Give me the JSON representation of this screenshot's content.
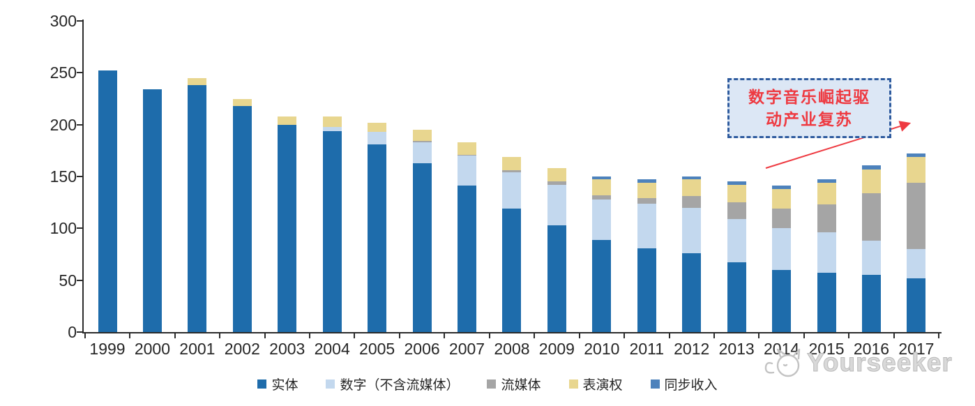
{
  "chart_data": {
    "type": "stacked-bar",
    "title": "",
    "xlabel": "",
    "ylabel": "",
    "ylim": [
      0,
      300
    ],
    "ytick_step": 50,
    "grid": false,
    "legend_position": "bottom",
    "categories": [
      "1999",
      "2000",
      "2001",
      "2002",
      "2003",
      "2004",
      "2005",
      "2006",
      "2007",
      "2008",
      "2009",
      "2010",
      "2011",
      "2012",
      "2013",
      "2014",
      "2015",
      "2016",
      "2017"
    ],
    "series": [
      {
        "key": "physical",
        "name": "实体",
        "color": "#1e6cab",
        "values": [
          252,
          234,
          238,
          218,
          200,
          194,
          181,
          163,
          141,
          119,
          103,
          89,
          81,
          76,
          67,
          60,
          57,
          55,
          52
        ]
      },
      {
        "key": "digital",
        "name": "数字（不含流媒体）",
        "color": "#c3d8ee",
        "values": [
          0,
          0,
          0,
          0,
          0,
          4,
          12,
          20,
          29,
          35,
          39,
          39,
          43,
          44,
          42,
          40,
          39,
          33,
          28
        ]
      },
      {
        "key": "streaming",
        "name": "流媒体",
        "color": "#a5a5a5",
        "values": [
          0,
          0,
          0,
          0,
          0,
          0,
          0,
          1,
          1,
          2,
          3,
          4,
          5,
          11,
          16,
          19,
          27,
          46,
          64
        ]
      },
      {
        "key": "performance",
        "name": "表演权",
        "color": "#e8d68f",
        "values": [
          0,
          0,
          7,
          7,
          8,
          10,
          9,
          11,
          12,
          13,
          13,
          15,
          15,
          16,
          17,
          19,
          21,
          23,
          25
        ]
      },
      {
        "key": "sync",
        "name": "同步收入",
        "color": "#4d82bc",
        "values": [
          0,
          0,
          0,
          0,
          0,
          0,
          0,
          0,
          0,
          0,
          0,
          3,
          3,
          3,
          3,
          3,
          3,
          4,
          3
        ]
      }
    ]
  },
  "annotation": {
    "lines": [
      "数字音乐崛起驱",
      "动产业复苏"
    ],
    "text_color": "#ee3a41",
    "box_fill": "#dce7f5",
    "box_border": "#2e5b9e"
  },
  "watermark": {
    "text": "Yourseeker",
    "icon": "cat-logo-icon",
    "color": "#c6c6c6"
  },
  "axis": {
    "color": "#2b2b2b",
    "label_color": "#262626"
  }
}
